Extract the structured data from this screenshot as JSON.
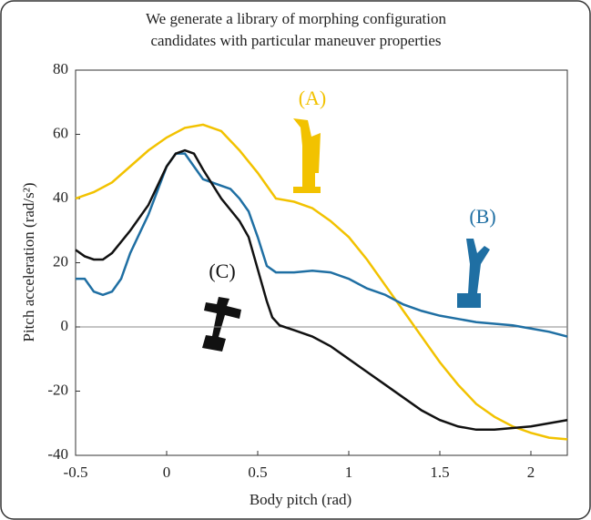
{
  "chart_data": {
    "type": "line",
    "title": [
      "We generate a library of morphing configuration",
      "candidates with particular maneuver properties"
    ],
    "x_label": "Body pitch (rad)",
    "y_label": "Pitch acceleration (rad/s²)",
    "xlim": [
      -0.5,
      2.2
    ],
    "ylim": [
      -40,
      80
    ],
    "xticks": [
      -0.5,
      0,
      0.5,
      1,
      1.5,
      2
    ],
    "yticks": [
      -40,
      -20,
      0,
      20,
      40,
      60,
      80
    ],
    "series": [
      {
        "name": "(A)",
        "color": "#f2c200",
        "x": [
          -0.5,
          -0.4,
          -0.3,
          -0.2,
          -0.1,
          0,
          0.1,
          0.2,
          0.3,
          0.4,
          0.5,
          0.6,
          0.7,
          0.8,
          0.9,
          1.0,
          1.1,
          1.2,
          1.3,
          1.4,
          1.5,
          1.6,
          1.7,
          1.8,
          1.9,
          2.0,
          2.1,
          2.2
        ],
        "values": [
          40,
          42,
          45,
          50,
          55,
          59,
          62,
          63,
          61,
          55,
          48,
          40,
          39,
          37,
          33,
          28,
          21,
          13,
          5,
          -3,
          -11,
          -18,
          -24,
          -28,
          -31,
          -33,
          -34.5,
          -35
        ]
      },
      {
        "name": "(B)",
        "color": "#1f6fa3",
        "x": [
          -0.5,
          -0.45,
          -0.4,
          -0.35,
          -0.3,
          -0.25,
          -0.2,
          -0.1,
          0,
          0.05,
          0.1,
          0.15,
          0.2,
          0.3,
          0.35,
          0.4,
          0.45,
          0.5,
          0.55,
          0.6,
          0.7,
          0.8,
          0.9,
          1.0,
          1.1,
          1.2,
          1.3,
          1.4,
          1.5,
          1.6,
          1.7,
          1.8,
          1.9,
          2.0,
          2.1,
          2.2
        ],
        "values": [
          15,
          15,
          11,
          10,
          11,
          15,
          23,
          35,
          50,
          54,
          54,
          50,
          46,
          44,
          43,
          40,
          36,
          28,
          19,
          17,
          17,
          17.5,
          17,
          15,
          12,
          10,
          7,
          5,
          3.5,
          2.5,
          1.5,
          1,
          0.5,
          -0.5,
          -1.5,
          -3
        ]
      },
      {
        "name": "(C)",
        "color": "#111111",
        "x": [
          -0.5,
          -0.45,
          -0.4,
          -0.35,
          -0.3,
          -0.2,
          -0.1,
          0,
          0.05,
          0.1,
          0.15,
          0.2,
          0.3,
          0.4,
          0.45,
          0.5,
          0.55,
          0.58,
          0.62,
          0.7,
          0.8,
          0.9,
          1.0,
          1.1,
          1.2,
          1.3,
          1.4,
          1.5,
          1.6,
          1.7,
          1.8,
          1.9,
          2.0,
          2.1,
          2.2
        ],
        "values": [
          24,
          22,
          21,
          21,
          23,
          30,
          38,
          50,
          54,
          55,
          54,
          49,
          40,
          33,
          28,
          18,
          8,
          3,
          0.5,
          -1,
          -3,
          -6,
          -10,
          -14,
          -18,
          -22,
          -26,
          -29,
          -31,
          -32,
          -32,
          -31.5,
          -31,
          -30,
          -29
        ]
      }
    ]
  }
}
